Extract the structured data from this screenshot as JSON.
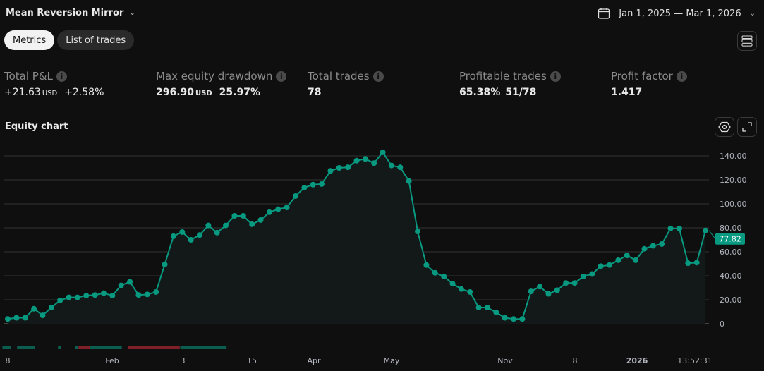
{
  "header": {
    "strategy_name": "Mean Reversion Mirror",
    "date_range": "Jan 1, 2025 — Mar 1, 2026"
  },
  "tabs": [
    {
      "label": "Metrics",
      "active": true
    },
    {
      "label": "List of trades",
      "active": false
    }
  ],
  "metrics": [
    {
      "label": "Total P&L",
      "value": "+21.63",
      "unit": "USD",
      "extra": "+2.58%",
      "positive": true
    },
    {
      "label": "Max equity drawdown",
      "value": "296.90",
      "unit": "USD",
      "extra": "25.97%"
    },
    {
      "label": "Total trades",
      "value": "78"
    },
    {
      "label": "Profitable trades",
      "value": "65.38%",
      "extra": "51/78"
    },
    {
      "label": "Profit factor",
      "value": "1.417"
    }
  ],
  "equity_chart": {
    "title": "Equity chart"
  },
  "colors": {
    "accent": "#089981",
    "positive": "#22ab94",
    "negative": "#7f1f28",
    "run": "#0b5e4f"
  },
  "chart_data": {
    "type": "line",
    "ylim": [
      0,
      150
    ],
    "yticks": [
      "0",
      "20.00",
      "40.00",
      "60.00",
      "80.00",
      "100.00",
      "120.00",
      "140.00"
    ],
    "ytick_values": [
      0,
      20,
      40,
      60,
      80,
      100,
      120,
      140
    ],
    "xticks": [
      "8",
      "Feb",
      "3",
      "15",
      "Apr",
      "May",
      "Nov",
      "8",
      "2026",
      "13:52:31"
    ],
    "last_value_label": "77.82",
    "grid": true,
    "values": [
      4,
      5,
      5,
      12.5,
      7,
      13.5,
      19.5,
      22,
      22,
      23.5,
      24,
      25.5,
      23.5,
      32,
      35,
      24,
      24.5,
      26.5,
      49.5,
      73,
      76.5,
      70,
      74,
      82,
      76,
      82,
      90,
      90,
      83,
      86.5,
      93,
      95.5,
      97,
      106.5,
      113.5,
      116,
      116.5,
      127.5,
      130,
      130.5,
      136,
      137.5,
      134,
      143,
      132,
      130.5,
      119,
      77,
      49,
      42.5,
      39.5,
      33.5,
      29,
      26.5,
      13.5,
      13.5,
      9.5,
      5,
      4,
      4,
      27,
      31,
      25,
      28,
      34,
      34,
      39.5,
      41.5,
      48,
      49,
      53,
      57,
      53,
      62.5,
      65,
      66.5,
      79.5,
      79.5,
      50.5,
      51,
      77.82
    ]
  }
}
